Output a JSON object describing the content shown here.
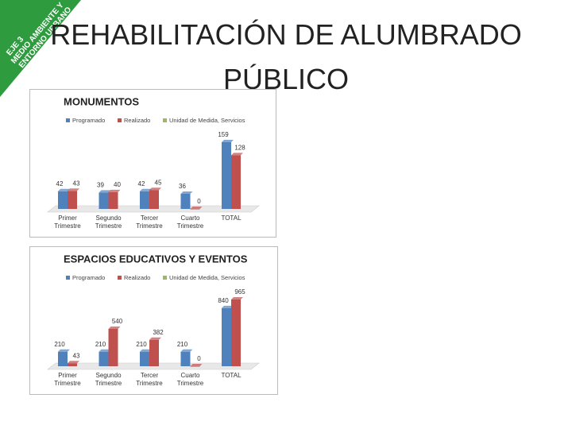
{
  "banner": [
    "EJE 3",
    "MEDIO AMBIENTE Y",
    "ENTORNO URBANO"
  ],
  "title": "REHABILITACIÓN DE ALUMBRADO PÚBLICO",
  "chart_data": [
    {
      "type": "bar",
      "title": "MONUMENTOS",
      "categories": [
        "Primer Trimestre",
        "Segundo Trimestre",
        "Tercer Trimestre",
        "Cuarto Trimestre",
        "TOTAL"
      ],
      "series": [
        {
          "name": "Programado",
          "color": "#4f81bd",
          "values": [
            42,
            39,
            42,
            36,
            159
          ]
        },
        {
          "name": "Realizado",
          "color": "#c0504d",
          "values": [
            43,
            40,
            45,
            0,
            128
          ]
        },
        {
          "name": "Unidad de Medida, Servicios",
          "color": "#9bbb59",
          "values": [
            null,
            null,
            null,
            null,
            null
          ]
        }
      ]
    },
    {
      "type": "bar",
      "title": "ESPACIOS EDUCATIVOS Y EVENTOS",
      "categories": [
        "Primer Trimestre",
        "Segundo Trimestre",
        "Tercer Trimestre",
        "Cuarto Trimestre",
        "TOTAL"
      ],
      "series": [
        {
          "name": "Programado",
          "color": "#4f81bd",
          "values": [
            210,
            210,
            210,
            210,
            840
          ]
        },
        {
          "name": "Realizado",
          "color": "#c0504d",
          "values": [
            43,
            540,
            382,
            0,
            965
          ]
        },
        {
          "name": "Unidad de Medida, Servicios",
          "color": "#9bbb59",
          "values": [
            null,
            null,
            null,
            null,
            null
          ]
        }
      ]
    }
  ]
}
